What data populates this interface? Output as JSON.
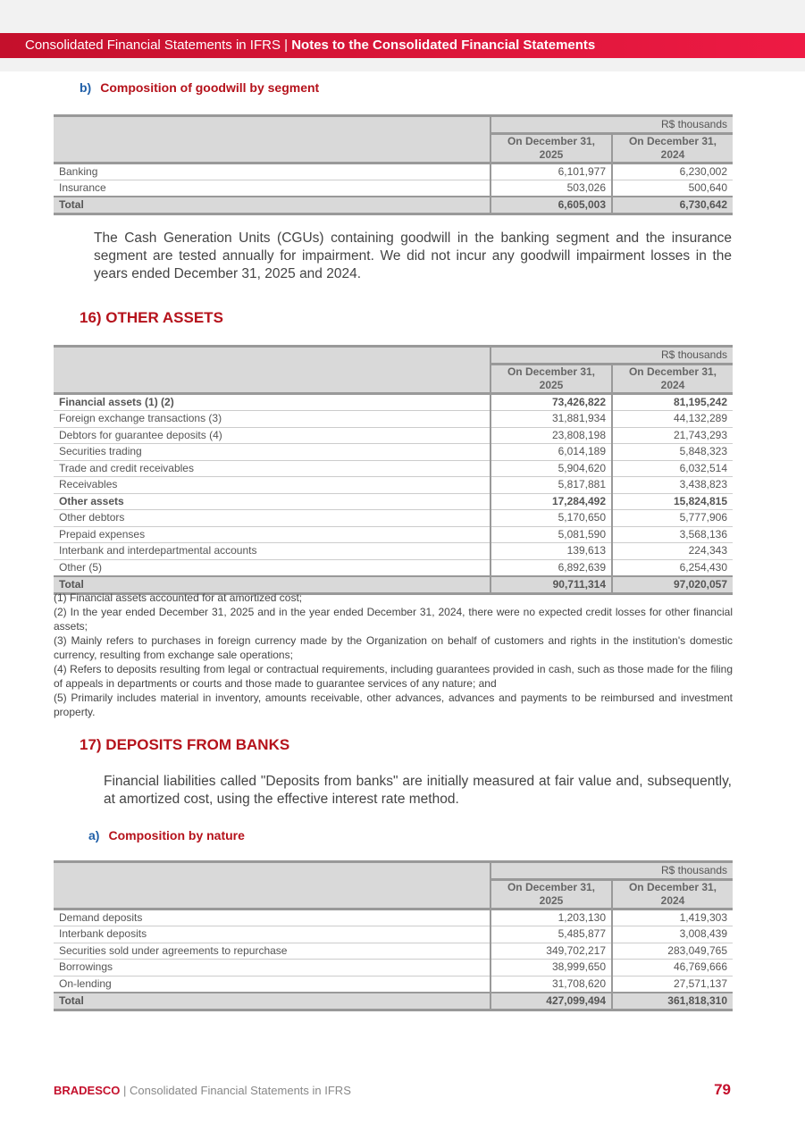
{
  "header": {
    "left": "Consolidated Financial Statements in IFRS",
    "sep": " | ",
    "right": "Notes to the Consolidated Financial Statements"
  },
  "goodwill": {
    "letter": "b)",
    "title": "Composition of goodwill by segment",
    "table": {
      "unit": "R$ thousands",
      "cols": [
        "On December 31, 2025",
        "On December 31, 2024"
      ],
      "rows": [
        {
          "label": "Banking",
          "v": [
            "6,101,977",
            "6,230,002"
          ]
        },
        {
          "label": "Insurance",
          "v": [
            "503,026",
            "500,640"
          ]
        }
      ],
      "total": {
        "label": "Total",
        "v": [
          "6,605,003",
          "6,730,642"
        ]
      }
    },
    "text": "The Cash Generation Units (CGUs) containing goodwill in the banking segment and the insurance segment are tested annually for impairment. We did not incur any goodwill impairment losses in the years ended December 31, 2025 and 2024."
  },
  "other_assets": {
    "title": "16)  OTHER ASSETS",
    "table": {
      "unit": "R$ thousands",
      "cols": [
        "On December 31, 2025",
        "On December 31, 2024"
      ],
      "rows": [
        {
          "label": "Financial assets (1) (2)",
          "v": [
            "73,426,822",
            "81,195,242"
          ],
          "bold": true
        },
        {
          "label": "Foreign exchange transactions (3)",
          "v": [
            "31,881,934",
            "44,132,289"
          ]
        },
        {
          "label": "Debtors for guarantee deposits (4)",
          "v": [
            "23,808,198",
            "21,743,293"
          ]
        },
        {
          "label": "Securities trading",
          "v": [
            "6,014,189",
            "5,848,323"
          ]
        },
        {
          "label": "Trade and credit receivables",
          "v": [
            "5,904,620",
            "6,032,514"
          ]
        },
        {
          "label": "Receivables",
          "v": [
            "5,817,881",
            "3,438,823"
          ]
        },
        {
          "label": "Other assets",
          "v": [
            "17,284,492",
            "15,824,815"
          ],
          "bold": true
        },
        {
          "label": "Other debtors",
          "v": [
            "5,170,650",
            "5,777,906"
          ]
        },
        {
          "label": "Prepaid expenses",
          "v": [
            "5,081,590",
            "3,568,136"
          ]
        },
        {
          "label": "Interbank and interdepartmental accounts",
          "v": [
            "139,613",
            "224,343"
          ]
        },
        {
          "label": "Other (5)",
          "v": [
            "6,892,639",
            "6,254,430"
          ]
        }
      ],
      "total": {
        "label": "Total",
        "v": [
          "90,711,314",
          "97,020,057"
        ]
      }
    },
    "notes": [
      "(1) Financial assets accounted for at amortized cost;",
      "(2) In the year ended December 31, 2025 and in the year ended December 31, 2024, there were no expected credit losses for other financial assets;",
      "(3) Mainly refers to purchases in foreign currency made by the Organization on behalf of customers and rights in the institution's domestic currency, resulting from exchange sale operations;",
      "(4) Refers to deposits resulting from legal or contractual requirements, including guarantees provided in cash, such as those made for the filing of appeals in departments or courts and those made to guarantee services of any nature; and",
      "(5) Primarily includes material in inventory, amounts receivable, other advances, advances and payments to be reimbursed and investment property."
    ]
  },
  "deposits": {
    "title": "17)  DEPOSITS FROM BANKS",
    "text": "Financial liabilities called \"Deposits from banks\" are initially measured at fair value and, subsequently, at amortized cost, using the effective interest rate method.",
    "letter": "a)",
    "subtitle": "Composition by nature",
    "table": {
      "unit": "R$ thousands",
      "cols": [
        "On December 31, 2025",
        "On December 31, 2024"
      ],
      "rows": [
        {
          "label": "Demand deposits",
          "v": [
            "1,203,130",
            "1,419,303"
          ]
        },
        {
          "label": "Interbank deposits",
          "v": [
            "5,485,877",
            "3,008,439"
          ]
        },
        {
          "label": "Securities sold under agreements to repurchase",
          "v": [
            "349,702,217",
            "283,049,765"
          ]
        },
        {
          "label": "Borrowings",
          "v": [
            "38,999,650",
            "46,769,666"
          ]
        },
        {
          "label": "On-lending",
          "v": [
            "31,708,620",
            "27,571,137"
          ]
        }
      ],
      "total": {
        "label": "Total",
        "v": [
          "427,099,494",
          "361,818,310"
        ]
      }
    }
  },
  "footer": {
    "brand": "BRADESCO",
    "sep": " | ",
    "text": "Consolidated Financial Statements in IFRS",
    "page": "79"
  }
}
